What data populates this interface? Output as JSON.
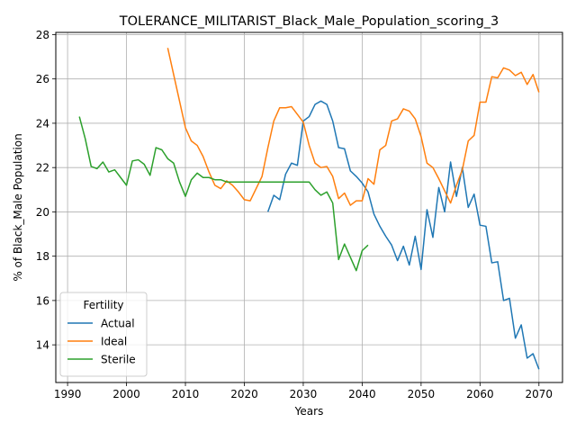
{
  "chart_data": {
    "type": "line",
    "title": "TOLERANCE_MILITARIST_Black_Male_Population_scoring_3",
    "xlabel": "Years",
    "ylabel": "% of Black_Male Population",
    "xlim": [
      1988,
      2074
    ],
    "ylim": [
      12.3,
      28.1
    ],
    "x_ticks": [
      1990,
      2000,
      2010,
      2020,
      2030,
      2040,
      2050,
      2060,
      2070
    ],
    "y_ticks": [
      14,
      16,
      18,
      20,
      22,
      24,
      26,
      28
    ],
    "grid": true,
    "legend": {
      "title": "Fertility",
      "placement": "lower-left"
    },
    "series": [
      {
        "name": "Actual",
        "color": "#1f77b4",
        "x": [
          2024,
          2025,
          2026,
          2027,
          2028,
          2029,
          2030,
          2031,
          2032,
          2033,
          2034,
          2035,
          2036,
          2037,
          2038,
          2039,
          2040,
          2041,
          2042,
          2043,
          2044,
          2045,
          2046,
          2047,
          2048,
          2049,
          2050,
          2051,
          2052,
          2053,
          2054,
          2055,
          2056,
          2057,
          2058,
          2059,
          2060,
          2061,
          2062,
          2063,
          2064,
          2065,
          2066,
          2067,
          2068,
          2069,
          2070
        ],
        "y": [
          20.0,
          20.75,
          20.55,
          21.7,
          22.2,
          22.1,
          24.1,
          24.3,
          24.85,
          25.0,
          24.85,
          24.1,
          22.9,
          22.85,
          21.85,
          21.6,
          21.3,
          20.9,
          19.9,
          19.35,
          18.9,
          18.5,
          17.8,
          18.45,
          17.6,
          18.9,
          17.4,
          20.1,
          18.85,
          21.1,
          20.0,
          22.25,
          20.7,
          22.0,
          20.2,
          20.8,
          19.4,
          19.35,
          17.7,
          17.75,
          16.0,
          16.1,
          14.3,
          14.9,
          13.4,
          13.6,
          12.9
        ]
      },
      {
        "name": "Ideal",
        "color": "#ff7f0e",
        "x": [
          2007,
          2008,
          2009,
          2010,
          2011,
          2012,
          2013,
          2014,
          2015,
          2016,
          2017,
          2018,
          2019,
          2020,
          2021,
          2022,
          2023,
          2024,
          2025,
          2026,
          2027,
          2028,
          2029,
          2030,
          2031,
          2032,
          2033,
          2034,
          2035,
          2036,
          2037,
          2038,
          2039,
          2040,
          2041,
          2042,
          2043,
          2044,
          2045,
          2046,
          2047,
          2048,
          2049,
          2050,
          2051,
          2052,
          2053,
          2054,
          2055,
          2056,
          2057,
          2058,
          2059,
          2060,
          2061,
          2062,
          2063,
          2064,
          2065,
          2066,
          2067,
          2068,
          2069,
          2070
        ],
        "y": [
          27.4,
          26.2,
          25.0,
          23.8,
          23.2,
          23.0,
          22.5,
          21.8,
          21.2,
          21.05,
          21.4,
          21.2,
          20.9,
          20.55,
          20.5,
          21.05,
          21.6,
          22.9,
          24.1,
          24.7,
          24.7,
          24.75,
          24.4,
          24.05,
          23.0,
          22.2,
          22.0,
          22.05,
          21.6,
          20.6,
          20.85,
          20.3,
          20.5,
          20.5,
          21.5,
          21.25,
          22.8,
          23.0,
          24.1,
          24.2,
          24.65,
          24.55,
          24.2,
          23.4,
          22.2,
          22.0,
          21.5,
          20.95,
          20.4,
          21.2,
          21.9,
          23.2,
          23.45,
          24.95,
          24.95,
          26.1,
          26.05,
          26.5,
          26.4,
          26.15,
          26.3,
          25.75,
          26.2,
          25.4
        ]
      },
      {
        "name": "Sterile",
        "color": "#2ca02c",
        "x": [
          1992,
          1993,
          1994,
          1995,
          1996,
          1997,
          1998,
          1999,
          2000,
          2001,
          2002,
          2003,
          2004,
          2005,
          2006,
          2007,
          2008,
          2009,
          2010,
          2011,
          2012,
          2013,
          2014,
          2015,
          2016,
          2017,
          2018,
          2019,
          2020,
          2021,
          2022,
          2023,
          2024,
          2025,
          2026,
          2027,
          2028,
          2029,
          2030,
          2031,
          2032,
          2033,
          2034,
          2035,
          2036,
          2037,
          2038,
          2039,
          2040,
          2041
        ],
        "y": [
          24.3,
          23.3,
          22.05,
          21.95,
          22.25,
          21.8,
          21.9,
          21.55,
          21.2,
          22.3,
          22.35,
          22.15,
          21.65,
          22.9,
          22.8,
          22.4,
          22.2,
          21.35,
          20.7,
          21.45,
          21.75,
          21.55,
          21.55,
          21.45,
          21.45,
          21.35,
          21.35,
          21.35,
          21.35,
          21.35,
          21.35,
          21.35,
          21.35,
          21.35,
          21.35,
          21.35,
          21.35,
          21.35,
          21.35,
          21.35,
          21.0,
          20.75,
          20.9,
          20.4,
          17.85,
          18.55,
          17.95,
          17.35,
          18.25,
          18.5
        ]
      }
    ]
  }
}
